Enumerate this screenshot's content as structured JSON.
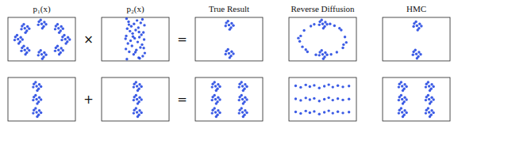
{
  "chart_data": [
    {
      "type": "scatter",
      "title": "p₁(x)",
      "annotation": "×",
      "color": "#1a3fe0",
      "marker": "circle",
      "tick_labels": false,
      "xlim": [
        -1,
        1
      ],
      "ylim": [
        -1,
        1
      ],
      "x": [
        0.7,
        0.78,
        0.62,
        0.76,
        0.6,
        0.83,
        0.67,
        0.72,
        0.5,
        0.58,
        0.42,
        0.56,
        0.4,
        0.63,
        0.47,
        0.52,
        0,
        0.08,
        -0.08,
        0.06,
        -0.1,
        0.13,
        -0.03,
        0.02,
        -0.5,
        -0.42,
        -0.58,
        -0.44,
        -0.6,
        -0.37,
        -0.53,
        -0.48,
        -0.7,
        -0.62,
        -0.78,
        -0.64,
        -0.8,
        -0.57,
        -0.73,
        -0.68,
        -0.5,
        -0.42,
        -0.58,
        -0.44,
        -0.6,
        -0.37,
        -0.53,
        -0.48,
        0,
        0.08,
        -0.08,
        0.06,
        -0.1,
        0.13,
        -0.03,
        0.02,
        0.5,
        0.58,
        0.42,
        0.56,
        0.4,
        0.63,
        0.47,
        0.52
      ],
      "values": [
        0,
        0.08,
        0.1,
        -0.12,
        -0.04,
        -0.02,
        0.18,
        -0.2,
        0.5,
        0.58,
        0.6,
        0.38,
        0.46,
        0.48,
        0.68,
        0.3,
        0.7,
        0.78,
        0.8,
        0.58,
        0.66,
        0.68,
        0.88,
        0.5,
        0.5,
        0.58,
        0.6,
        0.38,
        0.46,
        0.48,
        0.68,
        0.3,
        0,
        0.08,
        0.1,
        -0.12,
        -0.04,
        -0.02,
        0.18,
        -0.2,
        -0.5,
        -0.42,
        -0.4,
        -0.62,
        -0.54,
        -0.52,
        -0.32,
        -0.7,
        -0.7,
        -0.62,
        -0.6,
        -0.82,
        -0.74,
        -0.72,
        -0.52,
        -0.9,
        -0.5,
        -0.42,
        -0.4,
        -0.62,
        -0.54,
        -0.52,
        -0.32,
        -0.7
      ]
    },
    {
      "type": "scatter",
      "title": "p₂(x)",
      "annotation": "=",
      "color": "#1a3fe0",
      "marker": "circle",
      "tick_labels": false,
      "xlim": [
        -1,
        1
      ],
      "ylim": [
        -1,
        1
      ],
      "x": [
        -0.25,
        0.1,
        0.22,
        -0.05,
        0.28,
        -0.18,
        0.03,
        -0.28,
        0.15,
        -0.1,
        0.2,
        -0.22,
        0.07,
        -0.14,
        0.26,
        -0.02,
        0.12,
        -0.27,
        0.18,
        -0.08,
        0.24,
        -0.16,
        0.01,
        -0.24,
        0.09,
        -0.12,
        0.27,
        -0.04,
        0.16,
        -0.2,
        0.05,
        0.21,
        -0.26,
        0.13,
        -0.07,
        0.25,
        -0.19,
        0.0,
        0.11,
        -0.29
      ],
      "values": [
        -0.92,
        -0.85,
        -0.78,
        -0.7,
        -0.64,
        -0.58,
        -0.5,
        -0.45,
        -0.38,
        -0.31,
        -0.25,
        -0.2,
        -0.13,
        -0.07,
        -0.02,
        0.04,
        0.09,
        0.15,
        0.2,
        0.26,
        0.31,
        0.37,
        0.42,
        0.48,
        0.53,
        0.59,
        0.64,
        0.7,
        0.75,
        0.8,
        0.86,
        0.91,
        0.94,
        -0.88,
        0.12,
        -0.41,
        0.67,
        -0.6,
        0.33,
        0.02
      ]
    },
    {
      "type": "scatter",
      "title": "True Result",
      "color": "#1a3fe0",
      "marker": "circle",
      "tick_labels": false,
      "xlim": [
        -1,
        1
      ],
      "ylim": [
        -1,
        1
      ],
      "x": [
        0,
        0.08,
        -0.08,
        0.06,
        -0.1,
        0.13,
        -0.03,
        0.02,
        0,
        0.08,
        -0.08,
        0.06,
        -0.1,
        0.13,
        -0.03,
        0.02
      ],
      "values": [
        0.65,
        0.73,
        0.75,
        0.53,
        0.61,
        0.63,
        0.83,
        0.45,
        -0.65,
        -0.57,
        -0.55,
        -0.77,
        -0.69,
        -0.67,
        -0.47,
        -0.85
      ]
    },
    {
      "type": "scatter",
      "title": "Reverse Diffusion",
      "color": "#1a3fe0",
      "marker": "circle",
      "tick_labels": false,
      "xlim": [
        -1,
        1
      ],
      "ylim": [
        -1,
        1
      ],
      "x": [
        0,
        0.08,
        -0.08,
        0.06,
        -0.1,
        0.13,
        -0.03,
        0.02,
        0,
        0.08,
        -0.08,
        0.06,
        -0.1,
        0.13,
        -0.03,
        0.02,
        -0.35,
        0.35,
        -0.55,
        0.55,
        -0.65,
        0.66,
        -0.68,
        0.7,
        -0.6,
        0.6,
        -0.45,
        0.42,
        -0.25,
        0.22,
        -0.2,
        0.25,
        -0.72,
        0.5,
        -0.5,
        0.62
      ],
      "values": [
        0.7,
        0.78,
        0.8,
        0.58,
        0.66,
        0.68,
        0.88,
        0.5,
        -0.7,
        -0.62,
        -0.6,
        -0.82,
        -0.74,
        -0.72,
        -0.52,
        -0.9,
        0.6,
        0.62,
        0.4,
        0.42,
        0.15,
        0.1,
        -0.1,
        -0.15,
        -0.35,
        -0.4,
        -0.58,
        -0.6,
        0.68,
        0.7,
        -0.72,
        -0.7,
        0.05,
        0.5,
        -0.48,
        -0.25
      ]
    },
    {
      "type": "scatter",
      "title": "HMC",
      "color": "#1a3fe0",
      "marker": "circle",
      "tick_labels": false,
      "xlim": [
        -1,
        1
      ],
      "ylim": [
        -1,
        1
      ],
      "x": [
        0.02,
        0.1,
        -0.06,
        0.08,
        -0.08,
        0.15,
        -0.01,
        0.04,
        0,
        0.08,
        -0.08,
        0.06,
        -0.1,
        0.13,
        -0.03,
        0.02
      ],
      "values": [
        0.62,
        0.7,
        0.72,
        0.5,
        0.58,
        0.6,
        0.8,
        0.42,
        -0.68,
        -0.6,
        -0.58,
        -0.8,
        -0.72,
        -0.7,
        -0.5,
        -0.88
      ]
    },
    {
      "type": "scatter",
      "annotation": "+",
      "color": "#1a3fe0",
      "marker": "circle",
      "tick_labels": false,
      "xlim": [
        -1,
        1
      ],
      "ylim": [
        -1,
        1
      ],
      "x": [
        -0.15,
        -0.07,
        -0.23,
        -0.09,
        -0.25,
        -0.02,
        -0.18,
        -0.13,
        -0.15,
        -0.07,
        -0.23,
        -0.09,
        -0.25,
        -0.02,
        -0.18,
        -0.13,
        -0.15,
        -0.07,
        -0.23,
        -0.09,
        -0.25,
        -0.02,
        -0.18,
        -0.13
      ],
      "values": [
        0.6,
        0.68,
        0.7,
        0.48,
        0.56,
        0.58,
        0.78,
        0.4,
        0,
        0.08,
        0.1,
        -0.12,
        -0.04,
        -0.02,
        0.18,
        -0.2,
        -0.6,
        -0.52,
        -0.5,
        -0.72,
        -0.64,
        -0.62,
        -0.42,
        -0.8
      ]
    },
    {
      "type": "scatter",
      "annotation": "=",
      "color": "#1a3fe0",
      "marker": "circle",
      "tick_labels": false,
      "xlim": [
        -1,
        1
      ],
      "ylim": [
        -1,
        1
      ],
      "x": [
        0.05,
        0.13,
        -0.03,
        0.11,
        -0.05,
        0.18,
        0.02,
        0.07,
        0.05,
        0.13,
        -0.03,
        0.11,
        -0.05,
        0.18,
        0.02,
        0.07,
        0.05,
        0.13,
        -0.03,
        0.11,
        -0.05,
        0.18,
        0.02,
        0.07
      ],
      "values": [
        0.6,
        0.68,
        0.7,
        0.48,
        0.56,
        0.58,
        0.78,
        0.4,
        0,
        0.08,
        0.1,
        -0.12,
        -0.04,
        -0.02,
        0.18,
        -0.2,
        -0.6,
        -0.52,
        -0.5,
        -0.72,
        -0.64,
        -0.62,
        -0.42,
        -0.8
      ]
    },
    {
      "type": "scatter",
      "color": "#1a3fe0",
      "marker": "circle",
      "tick_labels": false,
      "xlim": [
        -1,
        1
      ],
      "ylim": [
        -1,
        1
      ],
      "x": [
        -0.4,
        -0.32,
        -0.48,
        -0.34,
        -0.5,
        -0.27,
        -0.43,
        -0.38,
        -0.4,
        -0.32,
        -0.48,
        -0.34,
        -0.5,
        -0.27,
        -0.43,
        -0.38,
        -0.4,
        -0.32,
        -0.48,
        -0.34,
        -0.5,
        -0.27,
        -0.43,
        -0.38,
        0.4,
        0.48,
        0.32,
        0.46,
        0.3,
        0.53,
        0.37,
        0.42,
        0.4,
        0.48,
        0.32,
        0.46,
        0.3,
        0.53,
        0.37,
        0.42,
        0.4,
        0.48,
        0.32,
        0.46,
        0.3,
        0.53,
        0.37,
        0.42
      ],
      "values": [
        0.6,
        0.68,
        0.7,
        0.48,
        0.56,
        0.58,
        0.78,
        0.4,
        0,
        0.08,
        0.1,
        -0.12,
        -0.04,
        -0.02,
        0.18,
        -0.2,
        -0.6,
        -0.52,
        -0.5,
        -0.72,
        -0.64,
        -0.62,
        -0.42,
        -0.8,
        0.6,
        0.68,
        0.7,
        0.48,
        0.56,
        0.58,
        0.78,
        0.4,
        0,
        0.08,
        0.1,
        -0.12,
        -0.04,
        -0.02,
        0.18,
        -0.2,
        -0.6,
        -0.52,
        -0.5,
        -0.72,
        -0.64,
        -0.62,
        -0.42,
        -0.8
      ]
    },
    {
      "type": "scatter",
      "color": "#1a3fe0",
      "marker": "circle",
      "tick_labels": false,
      "xlim": [
        -1,
        1
      ],
      "ylim": [
        -1,
        1
      ],
      "x": [
        -0.8,
        -0.65,
        -0.5,
        -0.38,
        -0.25,
        -0.1,
        0.05,
        0.18,
        0.3,
        0.45,
        0.6,
        0.78,
        -0.8,
        -0.65,
        -0.5,
        -0.38,
        -0.25,
        -0.1,
        0.05,
        0.18,
        0.3,
        0.45,
        0.6,
        0.78,
        -0.8,
        -0.65,
        -0.5,
        -0.38,
        -0.25,
        -0.1,
        0.05,
        0.18,
        0.3,
        0.45,
        0.6,
        0.78
      ],
      "values": [
        0.62,
        0.55,
        0.66,
        0.58,
        0.64,
        0.52,
        0.6,
        0.67,
        0.56,
        0.63,
        0.57,
        0.61,
        0.02,
        -0.05,
        0.06,
        -0.02,
        0.04,
        -0.08,
        0.0,
        0.07,
        -0.04,
        0.03,
        -0.03,
        0.01,
        -0.58,
        -0.65,
        -0.54,
        -0.62,
        -0.56,
        -0.68,
        -0.6,
        -0.53,
        -0.64,
        -0.57,
        -0.63,
        -0.59
      ]
    },
    {
      "type": "scatter",
      "color": "#1a3fe0",
      "marker": "circle",
      "tick_labels": false,
      "xlim": [
        -1,
        1
      ],
      "ylim": [
        -1,
        1
      ],
      "x": [
        -0.42,
        -0.34,
        -0.5,
        -0.36,
        -0.52,
        -0.29,
        -0.45,
        -0.4,
        -0.42,
        -0.34,
        -0.5,
        -0.36,
        -0.52,
        -0.29,
        -0.45,
        -0.4,
        -0.42,
        -0.34,
        -0.5,
        -0.36,
        -0.52,
        -0.29,
        -0.45,
        -0.4,
        0.38,
        0.46,
        0.3,
        0.44,
        0.28,
        0.51,
        0.35,
        0.4,
        0.38,
        0.46,
        0.3,
        0.44,
        0.28,
        0.51,
        0.35,
        0.4,
        0.38,
        0.46,
        0.3,
        0.44,
        0.28,
        0.51,
        0.35,
        0.4
      ],
      "values": [
        0.6,
        0.68,
        0.7,
        0.48,
        0.56,
        0.58,
        0.78,
        0.4,
        0,
        0.08,
        0.1,
        -0.12,
        -0.04,
        -0.02,
        0.18,
        -0.2,
        -0.6,
        -0.52,
        -0.5,
        -0.72,
        -0.64,
        -0.62,
        -0.42,
        -0.8,
        0.6,
        0.68,
        0.7,
        0.48,
        0.56,
        0.58,
        0.78,
        0.4,
        0,
        0.08,
        0.1,
        -0.12,
        -0.04,
        -0.02,
        0.18,
        -0.2,
        -0.6,
        -0.52,
        -0.5,
        -0.72,
        -0.64,
        -0.62,
        -0.42,
        -0.8
      ]
    }
  ]
}
